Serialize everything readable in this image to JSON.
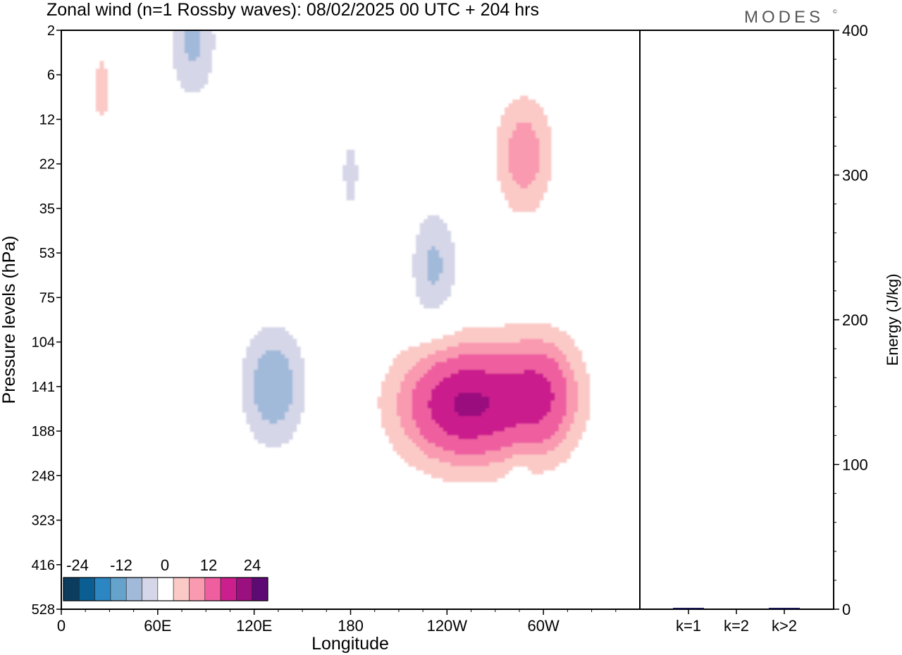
{
  "title": "Zonal wind (n=1 Rossby waves):  08/02/2025  00 UTC  + 204 hrs",
  "logo": "MODES",
  "colors": {
    "neg": [
      "#0c3d5e",
      "#0a5e92",
      "#2b86c2",
      "#66a3cc",
      "#a2bada",
      "#d5d6e8"
    ],
    "pos": [
      "#fbcac7",
      "#f99ab0",
      "#ef5fa0",
      "#ca1f8c",
      "#9a107f",
      "#5e0a74"
    ],
    "zero": "#ffffff",
    "bar": "#14134f"
  },
  "chart_data": [
    {
      "type": "heatmap",
      "title": "Zonal wind (n=1 Rossby waves):  08/02/2025  00 UTC  + 204 hrs",
      "xlabel": "Longitude",
      "ylabel": "Pressure levels (hPa)",
      "x_ticks": [
        "0",
        "60E",
        "120E",
        "180",
        "120W",
        "60W"
      ],
      "x_tick_values": [
        0,
        60,
        120,
        180,
        240,
        300
      ],
      "xlim": [
        0,
        360
      ],
      "y_ticks": [
        2,
        6,
        12,
        22,
        35,
        53,
        75,
        104,
        141,
        188,
        248,
        323,
        416,
        528
      ],
      "colorbar": {
        "tick_labels": [
          "-24",
          "-12",
          "0",
          "12",
          "24"
        ],
        "levels": [
          -30,
          -24,
          -18,
          -12,
          -8,
          -4,
          4,
          8,
          12,
          18,
          24,
          30
        ]
      },
      "features": [
        {
          "sign": "positive",
          "peak": 25,
          "lon": 252,
          "level": 160
        },
        {
          "sign": "positive",
          "peak": 15,
          "lon": 300,
          "level": 150
        },
        {
          "sign": "positive",
          "peak": 11,
          "lon": 288,
          "level": 20
        },
        {
          "sign": "positive",
          "peak": 5,
          "lon": 25,
          "level": 8
        },
        {
          "sign": "positive",
          "peak": 4,
          "lon": 48,
          "level": 40
        },
        {
          "sign": "negative",
          "peak": -12,
          "lon": 132,
          "level": 141
        },
        {
          "sign": "negative",
          "peak": -9,
          "lon": 82,
          "level": 3
        },
        {
          "sign": "negative",
          "peak": -9,
          "lon": 232,
          "level": 60
        },
        {
          "sign": "negative",
          "peak": -5,
          "lon": 180,
          "level": 25
        },
        {
          "sign": "negative",
          "peak": -4,
          "lon": 20,
          "level": 150
        },
        {
          "sign": "negative",
          "peak": -4,
          "lon": 248,
          "level": 500
        },
        {
          "sign": "negative",
          "peak": -4,
          "lon": 285,
          "level": 290
        }
      ]
    },
    {
      "type": "bar",
      "categories": [
        "k=1",
        "k=2",
        "k>2"
      ],
      "values": [
        0.5,
        0,
        0.5
      ],
      "ylabel": "Energy (J/kg)",
      "ylim": [
        0,
        400
      ],
      "y_ticks": [
        0,
        100,
        200,
        300,
        400
      ]
    }
  ]
}
